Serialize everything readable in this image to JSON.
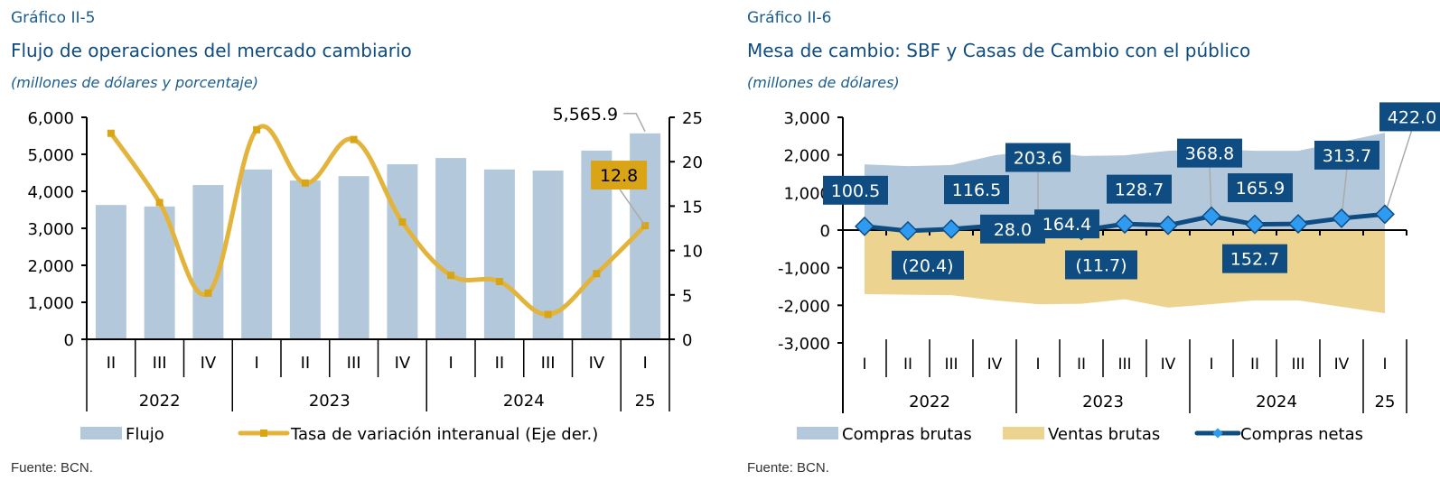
{
  "colors": {
    "bar": "#b3c9db",
    "line_gold": "#e3b43c",
    "marker_gold": "#d9a415",
    "label_gold_bg": "#d9a415",
    "compras_brutas": "#b3c9db",
    "ventas_brutas": "#ecd38f",
    "netas_line": "#0f4c81",
    "netas_marker": "#2e9bf0",
    "label_blue_bg": "#0f4c81",
    "title": "#0f4c81"
  },
  "chart_data": [
    {
      "type": "bar",
      "figure_label": "Gráfico II-5",
      "title": "Flujo de operaciones del mercado cambiario",
      "subtitle": "(millones de dólares y porcentaje)",
      "source": "Fuente: BCN.",
      "quarters": [
        "II",
        "III",
        "IV",
        "I",
        "II",
        "III",
        "IV",
        "I",
        "II",
        "III",
        "IV",
        "I"
      ],
      "years": [
        {
          "label": "2022",
          "span": 3
        },
        {
          "label": "2023",
          "span": 4
        },
        {
          "label": "2024",
          "span": 4
        },
        {
          "label": "25",
          "span": 1
        }
      ],
      "y_left": {
        "min": 0,
        "max": 6000,
        "ticks": [
          "0",
          "1,000",
          "2,000",
          "3,000",
          "4,000",
          "5,000",
          "6,000"
        ]
      },
      "y_right": {
        "min": 0,
        "max": 25,
        "ticks": [
          "0",
          "5",
          "10",
          "15",
          "20",
          "25"
        ]
      },
      "series": [
        {
          "name": "Flujo",
          "type": "bar",
          "axis": "left",
          "values": [
            3630,
            3590,
            4170,
            4590,
            4290,
            4410,
            4730,
            4900,
            4590,
            4560,
            5100,
            5565.9
          ]
        },
        {
          "name": "Tasa de variación interanual (Eje der.)",
          "type": "line",
          "axis": "right",
          "values": [
            23.2,
            15.4,
            5.2,
            23.6,
            17.6,
            22.5,
            13.2,
            7.2,
            6.5,
            2.8,
            7.4,
            12.8
          ]
        }
      ],
      "annotations": [
        {
          "series": "Flujo",
          "index": 11,
          "text": "5,565.9"
        },
        {
          "series": "Tasa de variación interanual (Eje der.)",
          "index": 11,
          "text": "12.8"
        }
      ],
      "legend": [
        "Flujo",
        "Tasa de variación interanual (Eje der.)"
      ],
      "legend_position": "bottom"
    },
    {
      "type": "area",
      "figure_label": "Gráfico II-6",
      "title": "Mesa de cambio: SBF y Casas de Cambio con el público",
      "subtitle": "(millones de dólares)",
      "source": "Fuente: BCN.",
      "quarters": [
        "I",
        "II",
        "III",
        "IV",
        "I",
        "II",
        "III",
        "IV",
        "I",
        "II",
        "III",
        "IV",
        "I"
      ],
      "years": [
        {
          "label": "2022",
          "span": 4
        },
        {
          "label": "2023",
          "span": 4
        },
        {
          "label": "2024",
          "span": 4
        },
        {
          "label": "25",
          "span": 1
        }
      ],
      "y": {
        "min": -3000,
        "max": 3000,
        "ticks": [
          "-3,000",
          "-2,000",
          "-1,000",
          "0",
          "1,000",
          "2,000",
          "3,000"
        ]
      },
      "series": [
        {
          "name": "Compras brutas",
          "type": "area",
          "values": [
            1750,
            1700,
            1730,
            1990,
            2130,
            1970,
            1990,
            2110,
            2160,
            2110,
            2110,
            2350,
            2590
          ]
        },
        {
          "name": "Ventas brutas",
          "type": "area",
          "values": [
            -1700,
            -1720,
            -1730,
            -1870,
            -1970,
            -1960,
            -1840,
            -2060,
            -1970,
            -1870,
            -1870,
            -2040,
            -2210
          ]
        },
        {
          "name": "Compras netas",
          "type": "line",
          "values": [
            100.5,
            -20.4,
            28.0,
            116.5,
            203.6,
            -11.7,
            164.4,
            128.7,
            368.8,
            152.7,
            165.9,
            313.7,
            422.0
          ],
          "labels": [
            "100.5",
            "(20.4)",
            "28.0",
            "116.5",
            "203.6",
            "(11.7)",
            "164.4",
            "128.7",
            "368.8",
            "152.7",
            "165.9",
            "313.7",
            "422.0"
          ]
        }
      ],
      "legend": [
        "Compras brutas",
        "Ventas brutas",
        "Compras netas"
      ],
      "legend_position": "bottom"
    }
  ]
}
